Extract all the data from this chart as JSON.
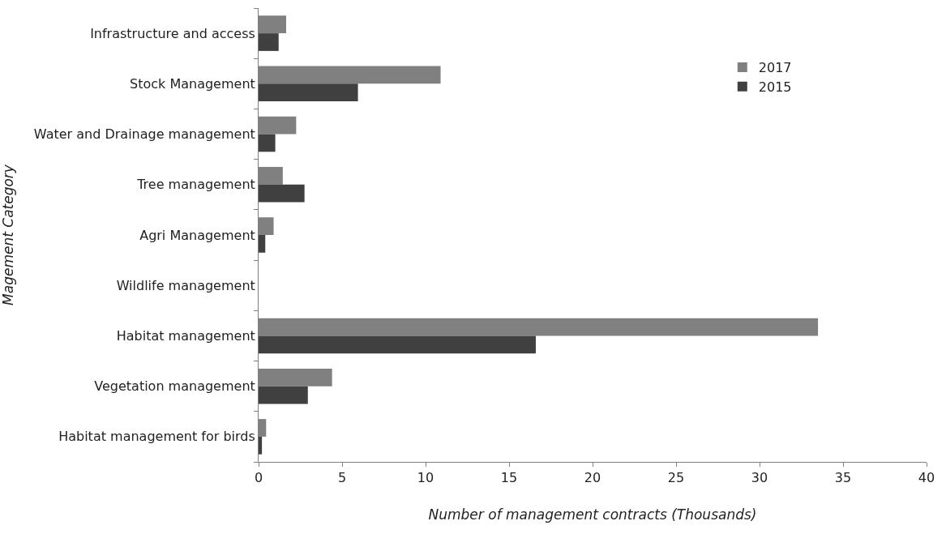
{
  "chart_data": {
    "type": "bar",
    "orientation": "horizontal",
    "xlabel": "Number of management contracts (Thousands)",
    "ylabel": "Magement Category",
    "categories": [
      "Infrastructure and access",
      "Stock Management",
      "Water and Drainage management",
      "Tree management",
      "Agri Management",
      "Wildlife management",
      "Habitat management",
      "Vegetation management",
      "Habitat management for birds"
    ],
    "series": [
      {
        "name": "2017",
        "color": "#808080",
        "values": [
          1.65,
          10.9,
          2.25,
          1.45,
          0.9,
          0,
          33.5,
          4.4,
          0.45
        ]
      },
      {
        "name": "2015",
        "color": "#404040",
        "values": [
          1.2,
          5.95,
          1.0,
          2.75,
          0.4,
          0,
          16.6,
          2.95,
          0.2
        ]
      }
    ],
    "xlim": [
      0,
      40
    ],
    "xticks": [
      0,
      5,
      10,
      15,
      20,
      25,
      30,
      35,
      40
    ],
    "legend": "top right"
  }
}
